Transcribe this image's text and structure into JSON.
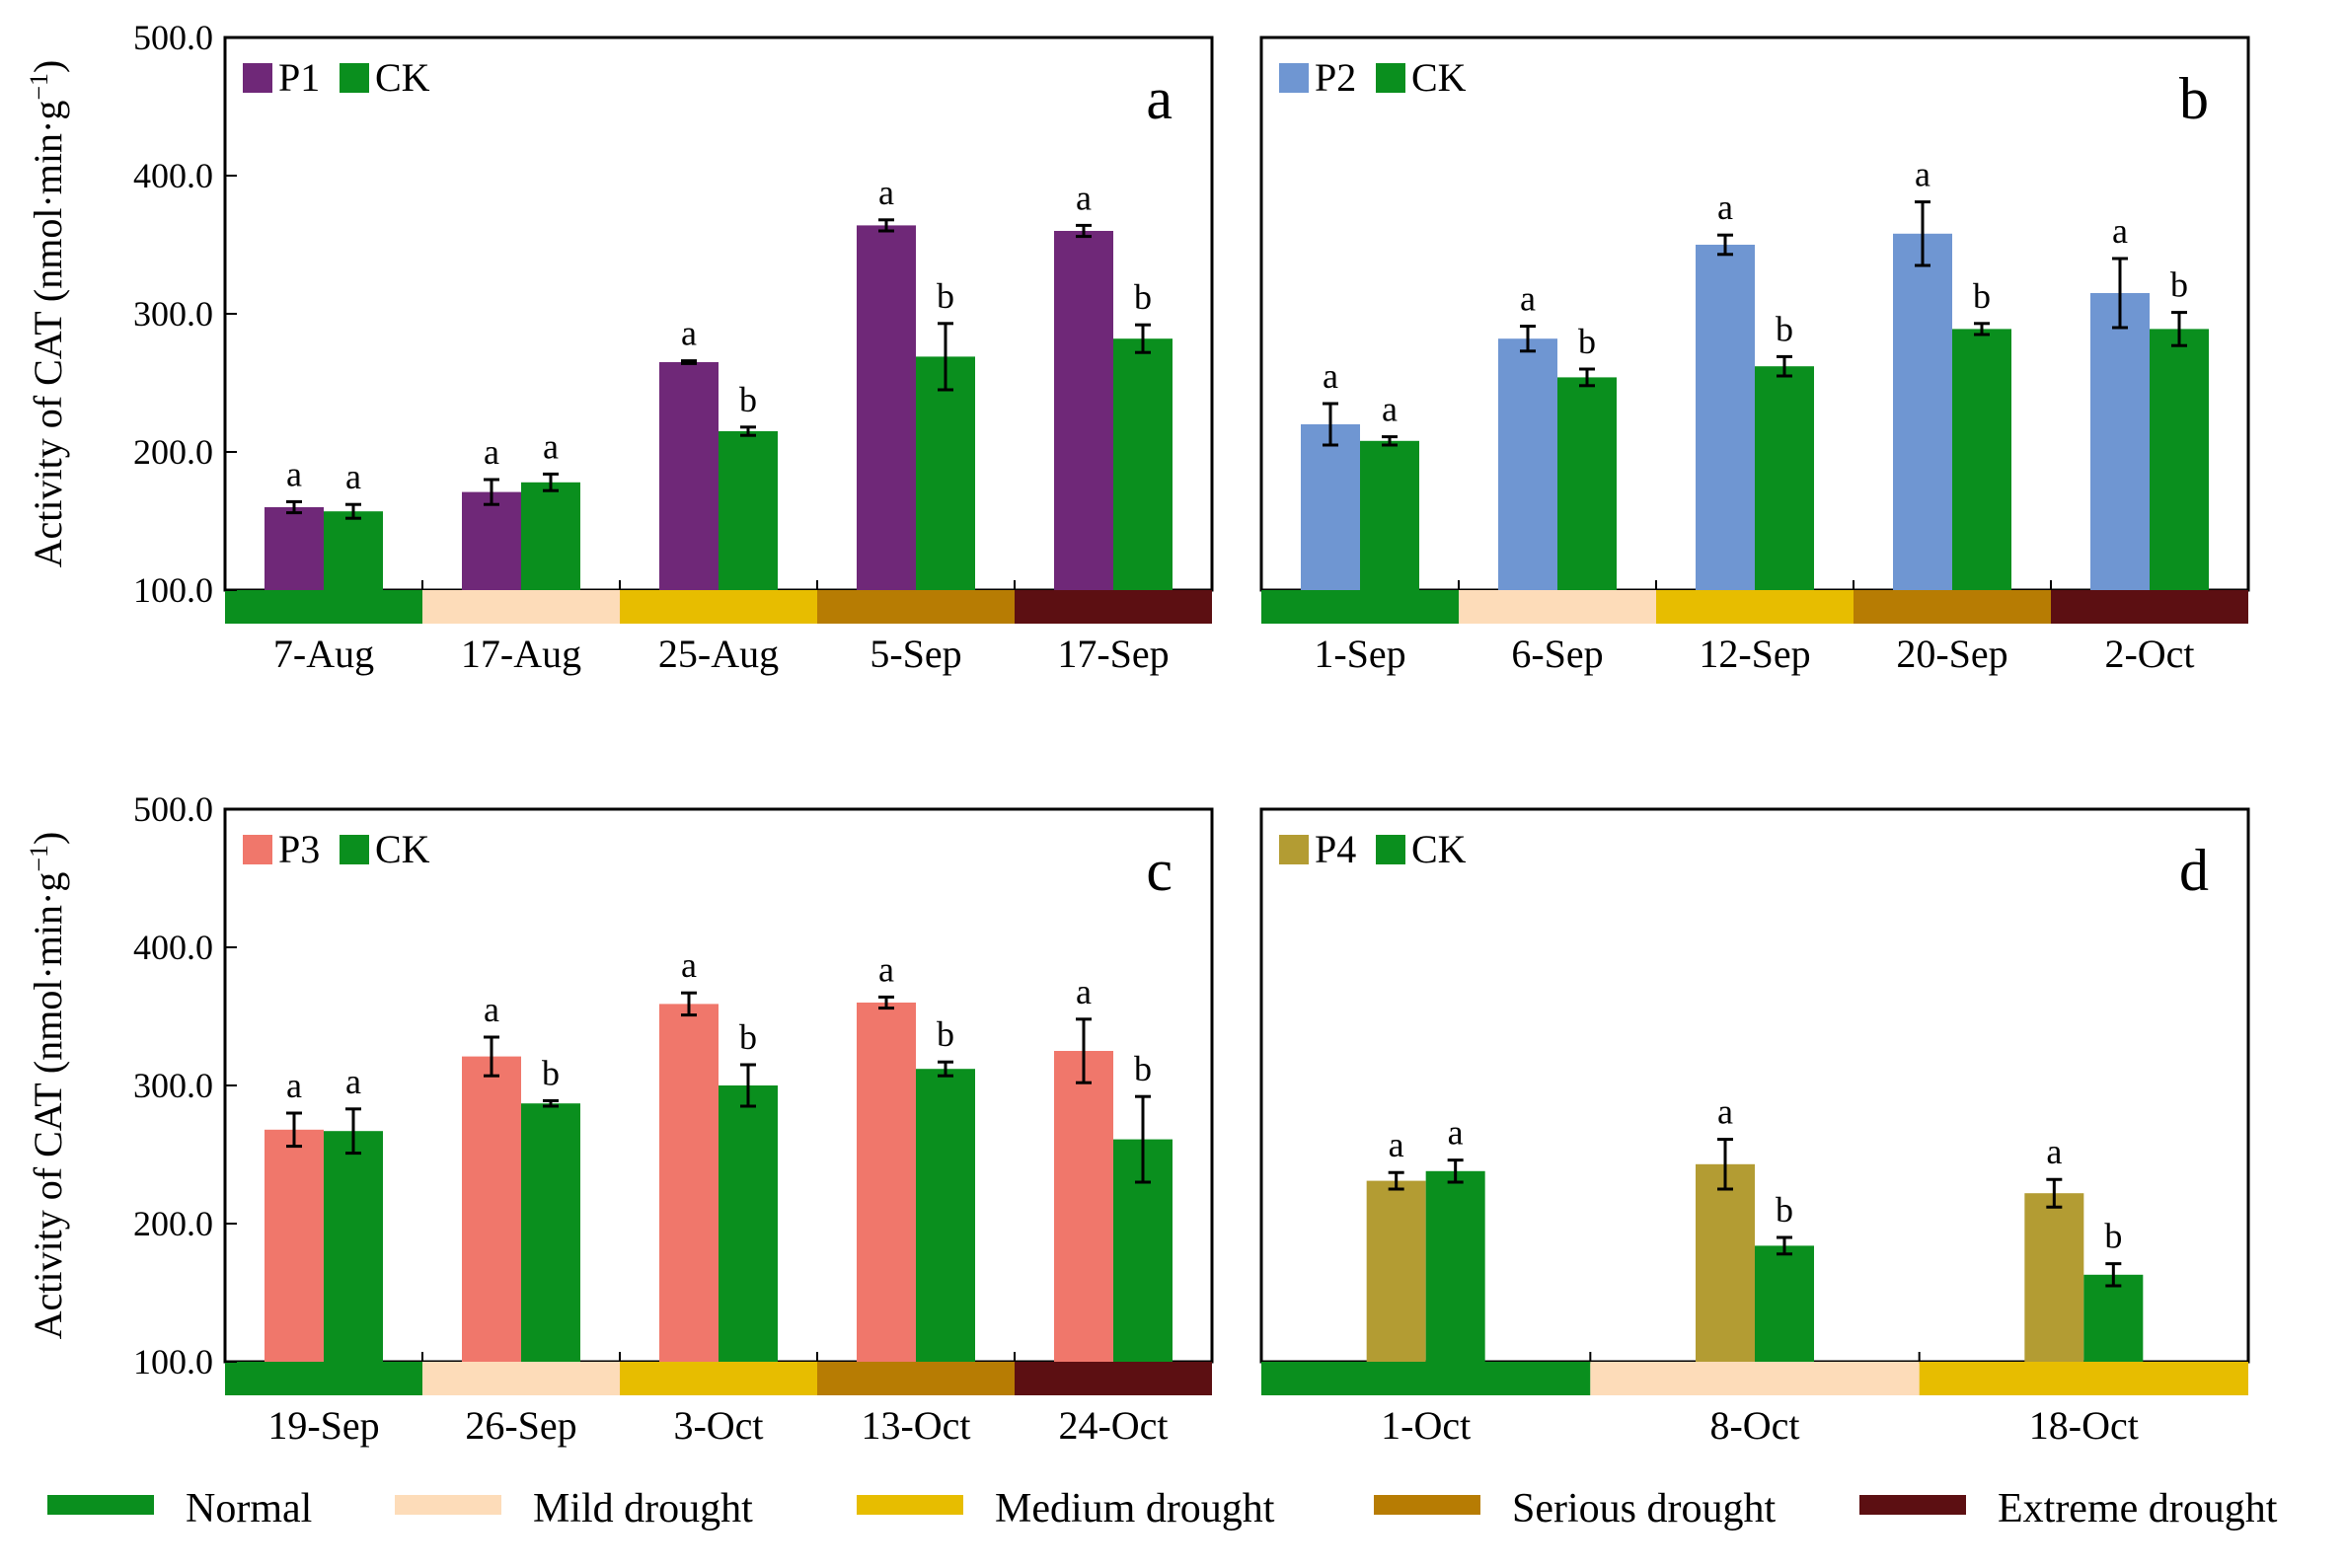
{
  "legend": {
    "items": [
      {
        "label": "Normal",
        "color": "#0a8f1e"
      },
      {
        "label": "Mild drought",
        "color": "#fddcb9"
      },
      {
        "label": "Medium drought",
        "color": "#e7bd00"
      },
      {
        "label": "Serious drought",
        "color": "#b77c03"
      },
      {
        "label": "Extreme drought",
        "color": "#5c0f12"
      }
    ]
  },
  "y_axis": {
    "label_prefix": "Activity of  CAT (nmol·min·g",
    "label_suffix": ")",
    "ticks": [
      "100.0",
      "200.0",
      "300.0",
      "400.0",
      "500.0"
    ]
  },
  "chart_data": [
    {
      "type": "bar",
      "panel": "a",
      "ylim": [
        100,
        500
      ],
      "ylabel": "Activity of  CAT (nmol·min·g )",
      "categories": [
        "7-Aug",
        "17-Aug",
        "25-Aug",
        "5-Sep",
        "17-Sep"
      ],
      "conditions": [
        "Normal",
        "Mild drought",
        "Medium drought",
        "Serious drought",
        "Extreme drought"
      ],
      "series": [
        {
          "name": "P1",
          "color": "#6f2878",
          "values": [
            160,
            171,
            265,
            364,
            360
          ],
          "errors": [
            4,
            9,
            1,
            4,
            4
          ],
          "letters": [
            "a",
            "a",
            "a",
            "a",
            "a"
          ]
        },
        {
          "name": "CK",
          "color": "#0a8f1e",
          "values": [
            157,
            178,
            215,
            269,
            282
          ],
          "errors": [
            5,
            6,
            3,
            24,
            10
          ],
          "letters": [
            "a",
            "a",
            "b",
            "b",
            "b"
          ]
        }
      ]
    },
    {
      "type": "bar",
      "panel": "b",
      "ylim": [
        100,
        500
      ],
      "ylabel": "",
      "categories": [
        "1-Sep",
        "6-Sep",
        "12-Sep",
        "20-Sep",
        "2-Oct"
      ],
      "conditions": [
        "Normal",
        "Mild drought",
        "Medium drought",
        "Serious drought",
        "Extreme drought"
      ],
      "series": [
        {
          "name": "P2",
          "color": "#6f96d2",
          "values": [
            220,
            282,
            350,
            358,
            315
          ],
          "errors": [
            15,
            9,
            7,
            23,
            25
          ],
          "letters": [
            "a",
            "a",
            "a",
            "a",
            "a"
          ]
        },
        {
          "name": "CK",
          "color": "#0a8f1e",
          "values": [
            208,
            254,
            262,
            289,
            289
          ],
          "errors": [
            3,
            6,
            7,
            4,
            12
          ],
          "letters": [
            "a",
            "b",
            "b",
            "b",
            "b"
          ]
        }
      ]
    },
    {
      "type": "bar",
      "panel": "c",
      "ylim": [
        100,
        500
      ],
      "ylabel": "Activity of  CAT (nmol·min·g )",
      "categories": [
        "19-Sep",
        "26-Sep",
        "3-Oct",
        "13-Oct",
        "24-Oct"
      ],
      "conditions": [
        "Normal",
        "Mild drought",
        "Medium drought",
        "Serious drought",
        "Extreme drought"
      ],
      "series": [
        {
          "name": "P3",
          "color": "#f0776b",
          "values": [
            268,
            321,
            359,
            360,
            325
          ],
          "errors": [
            12,
            14,
            8,
            4,
            23
          ],
          "letters": [
            "a",
            "a",
            "a",
            "a",
            "a"
          ]
        },
        {
          "name": "CK",
          "color": "#0a8f1e",
          "values": [
            267,
            287,
            300,
            312,
            261
          ],
          "errors": [
            16,
            2,
            15,
            5,
            31
          ],
          "letters": [
            "a",
            "b",
            "b",
            "b",
            "b"
          ]
        }
      ]
    },
    {
      "type": "bar",
      "panel": "d",
      "ylim": [
        100,
        500
      ],
      "ylabel": "",
      "categories": [
        "1-Oct",
        "8-Oct",
        "18-Oct"
      ],
      "conditions": [
        "Normal",
        "Mild drought",
        "Medium drought"
      ],
      "series": [
        {
          "name": "P4",
          "color": "#b39c33",
          "values": [
            231,
            243,
            222
          ],
          "errors": [
            6,
            18,
            10
          ],
          "letters": [
            "a",
            "a",
            "a"
          ]
        },
        {
          "name": "CK",
          "color": "#0a8f1e",
          "values": [
            238,
            184,
            163
          ],
          "errors": [
            8,
            6,
            8
          ],
          "letters": [
            "a",
            "b",
            "b"
          ]
        }
      ]
    }
  ]
}
